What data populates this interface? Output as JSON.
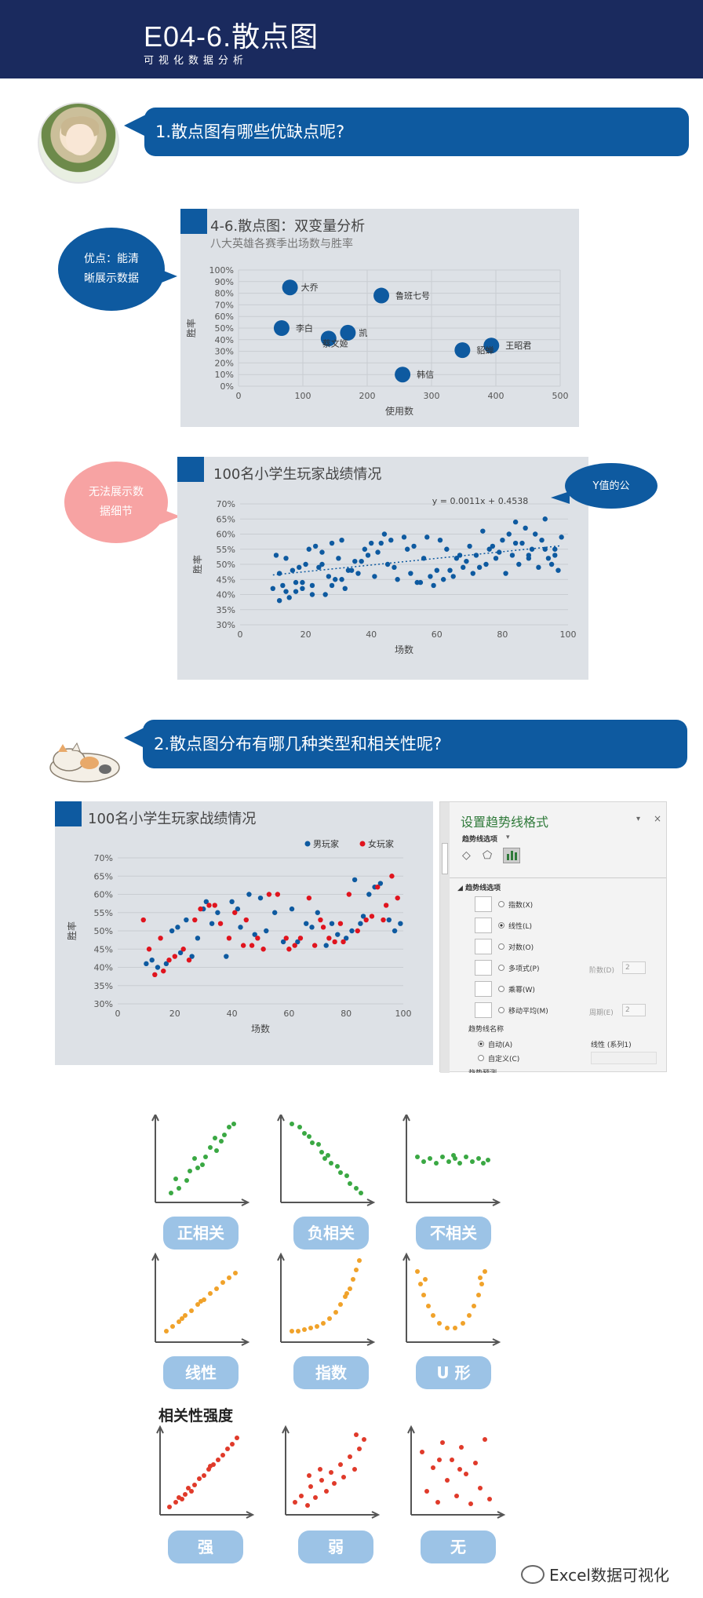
{
  "header": {
    "title": "E04-6.散点图",
    "subtitle": "可视化数据分析"
  },
  "section1": {
    "title": "1.散点图有哪些优缺点呢?"
  },
  "section2": {
    "title": "2.散点图分布有哪几种类型和相关性呢?"
  },
  "bubbles": {
    "pro": [
      "优点：能清",
      "晰展示数据"
    ],
    "con": [
      "无法展示数",
      "据细节"
    ],
    "yval": "Y值的公"
  },
  "chart1": {
    "title": "4-6.散点图：双变量分析",
    "subtitle": "八大英雄各赛季出场数与胜率",
    "chart_data": {
      "type": "scatter",
      "xlabel": "使用数",
      "ylabel": "胜率",
      "xlim": [
        0,
        500
      ],
      "ylim": [
        0,
        1
      ],
      "xticks": [
        "0",
        "100",
        "200",
        "300",
        "400",
        "500"
      ],
      "yticks": [
        "0%",
        "10%",
        "20%",
        "30%",
        "40%",
        "50%",
        "60%",
        "70%",
        "80%",
        "90%",
        "100%"
      ],
      "points": [
        {
          "label": "大乔",
          "x": 80,
          "y": 0.85
        },
        {
          "label": "鲁班七号",
          "x": 222,
          "y": 0.78
        },
        {
          "label": "李白",
          "x": 67,
          "y": 0.5
        },
        {
          "label": "蔡文姬",
          "x": 140,
          "y": 0.41
        },
        {
          "label": "凯",
          "x": 170,
          "y": 0.46
        },
        {
          "label": "貂蝉",
          "x": 348,
          "y": 0.31
        },
        {
          "label": "王昭君",
          "x": 393,
          "y": 0.35
        },
        {
          "label": "韩信",
          "x": 255,
          "y": 0.1
        }
      ],
      "label_texts": [
        "大乔",
        "鲁班七号",
        "李白",
        "凯",
        "蔡文姬",
        "貂蝉",
        "王昭君",
        "韩信"
      ]
    }
  },
  "chart2": {
    "title": "100名小学生玩家战绩情况",
    "chart_data": {
      "type": "scatter",
      "xlabel": "场数",
      "ylabel": "胜率",
      "xlim": [
        0,
        100
      ],
      "ylim": [
        0.3,
        0.7
      ],
      "xticks": [
        "0",
        "20",
        "40",
        "60",
        "80",
        "100"
      ],
      "yticks": [
        "30%",
        "35%",
        "40%",
        "45%",
        "50%",
        "55%",
        "60%",
        "65%",
        "70%"
      ],
      "trendline": {
        "equation": "y = 0.0011x + 0.4538",
        "slope": 0.0011,
        "intercept": 0.4538
      },
      "x": [
        10,
        11,
        12,
        13,
        14,
        15,
        16,
        17,
        18,
        19,
        20,
        21,
        22,
        23,
        24,
        25,
        26,
        27,
        28,
        29,
        30,
        31,
        32,
        33,
        35,
        36,
        38,
        40,
        41,
        42,
        44,
        45,
        46,
        48,
        50,
        52,
        53,
        55,
        56,
        58,
        60,
        61,
        62,
        63,
        64,
        66,
        68,
        70,
        71,
        72,
        73,
        74,
        75,
        76,
        78,
        80,
        81,
        82,
        83,
        84,
        85,
        86,
        87,
        88,
        89,
        90,
        91,
        92,
        93,
        94,
        95,
        96,
        97,
        98,
        12,
        14,
        17,
        19,
        22,
        25,
        28,
        31,
        34,
        37,
        39,
        43,
        47,
        51,
        54,
        57,
        59,
        65,
        67,
        69,
        77,
        79,
        84,
        88,
        93,
        96
      ],
      "y": [
        0.42,
        0.53,
        0.38,
        0.43,
        0.52,
        0.39,
        0.48,
        0.41,
        0.49,
        0.44,
        0.5,
        0.55,
        0.43,
        0.56,
        0.49,
        0.54,
        0.4,
        0.46,
        0.57,
        0.45,
        0.52,
        0.58,
        0.42,
        0.48,
        0.51,
        0.47,
        0.55,
        0.57,
        0.46,
        0.54,
        0.6,
        0.5,
        0.58,
        0.45,
        0.59,
        0.47,
        0.56,
        0.44,
        0.52,
        0.46,
        0.48,
        0.58,
        0.45,
        0.55,
        0.48,
        0.52,
        0.49,
        0.56,
        0.47,
        0.53,
        0.49,
        0.61,
        0.5,
        0.55,
        0.52,
        0.58,
        0.47,
        0.6,
        0.53,
        0.64,
        0.5,
        0.57,
        0.62,
        0.53,
        0.55,
        0.6,
        0.49,
        0.58,
        0.65,
        0.52,
        0.5,
        0.55,
        0.48,
        0.59,
        0.47,
        0.41,
        0.44,
        0.42,
        0.4,
        0.5,
        0.43,
        0.45,
        0.48,
        0.51,
        0.53,
        0.57,
        0.49,
        0.55,
        0.44,
        0.59,
        0.43,
        0.46,
        0.53,
        0.51,
        0.56,
        0.54,
        0.57,
        0.52,
        0.55,
        0.53
      ]
    }
  },
  "chart3": {
    "title": "100名小学生玩家战绩情况",
    "chart_data": {
      "type": "scatter",
      "xlabel": "场数",
      "ylabel": "胜率",
      "xlim": [
        0,
        100
      ],
      "ylim": [
        0.3,
        0.7
      ],
      "xticks": [
        "0",
        "20",
        "40",
        "60",
        "80",
        "100"
      ],
      "yticks": [
        "30%",
        "35%",
        "40%",
        "45%",
        "50%",
        "55%",
        "60%",
        "65%",
        "70%"
      ],
      "legend_position": "top-right",
      "series": [
        {
          "name": "男玩家",
          "color": "#0e5aa0",
          "x": [
            10,
            12,
            14,
            17,
            19,
            21,
            22,
            24,
            26,
            28,
            30,
            31,
            33,
            35,
            38,
            40,
            42,
            43,
            46,
            48,
            50,
            52,
            55,
            58,
            61,
            63,
            66,
            68,
            70,
            73,
            75,
            77,
            80,
            82,
            83,
            85,
            86,
            88,
            90,
            92,
            95,
            97,
            99
          ],
          "y": [
            0.41,
            0.42,
            0.4,
            0.41,
            0.5,
            0.51,
            0.44,
            0.53,
            0.43,
            0.48,
            0.56,
            0.58,
            0.52,
            0.55,
            0.43,
            0.58,
            0.56,
            0.51,
            0.6,
            0.49,
            0.59,
            0.5,
            0.55,
            0.47,
            0.56,
            0.47,
            0.52,
            0.51,
            0.55,
            0.46,
            0.52,
            0.49,
            0.48,
            0.5,
            0.64,
            0.52,
            0.54,
            0.6,
            0.62,
            0.63,
            0.53,
            0.5,
            0.52
          ]
        },
        {
          "name": "女玩家",
          "color": "#e0141e",
          "x": [
            9,
            11,
            13,
            15,
            16,
            18,
            20,
            23,
            25,
            27,
            29,
            32,
            34,
            36,
            39,
            41,
            44,
            45,
            47,
            49,
            51,
            53,
            56,
            59,
            60,
            62,
            64,
            67,
            69,
            71,
            72,
            74,
            76,
            78,
            79,
            81,
            84,
            87,
            89,
            91,
            93,
            94,
            96,
            98
          ],
          "y": [
            0.53,
            0.45,
            0.38,
            0.48,
            0.39,
            0.42,
            0.43,
            0.45,
            0.42,
            0.53,
            0.56,
            0.57,
            0.57,
            0.52,
            0.48,
            0.55,
            0.46,
            0.53,
            0.46,
            0.48,
            0.45,
            0.6,
            0.6,
            0.48,
            0.45,
            0.46,
            0.48,
            0.59,
            0.46,
            0.53,
            0.51,
            0.48,
            0.47,
            0.52,
            0.47,
            0.6,
            0.5,
            0.53,
            0.54,
            0.62,
            0.53,
            0.57,
            0.65,
            0.59
          ]
        }
      ]
    }
  },
  "trend_pane": {
    "title": "设置趋势线格式",
    "section": "趋势线选项",
    "group": "趋势线选项",
    "options": [
      {
        "label": "指数(X)",
        "selected": false
      },
      {
        "label": "线性(L)",
        "selected": true
      },
      {
        "label": "对数(O)",
        "selected": false
      },
      {
        "label": "多项式(P)",
        "selected": false,
        "extra": "阶数(D)",
        "value": "2"
      },
      {
        "label": "乘幂(W)",
        "selected": false
      },
      {
        "label": "移动平均(M)",
        "selected": false,
        "extra": "周期(E)",
        "value": "2"
      }
    ],
    "name_title": "趋势线名称",
    "auto": "自动(A)",
    "auto_value": "线性 (系列1)",
    "custom": "自定义(C)",
    "cut": "趋势预测"
  },
  "correlation": {
    "types": [
      "正相关",
      "负相关",
      "不相关",
      "线性",
      "指数",
      "U 形"
    ],
    "strength_heading": "相关性强度",
    "strength": [
      "强",
      "弱",
      "无"
    ],
    "colors": {
      "green": "#3aa843",
      "orange": "#f0a22a",
      "red": "#e03a2a"
    }
  },
  "footer": {
    "brand": "Excel数据可视化"
  }
}
